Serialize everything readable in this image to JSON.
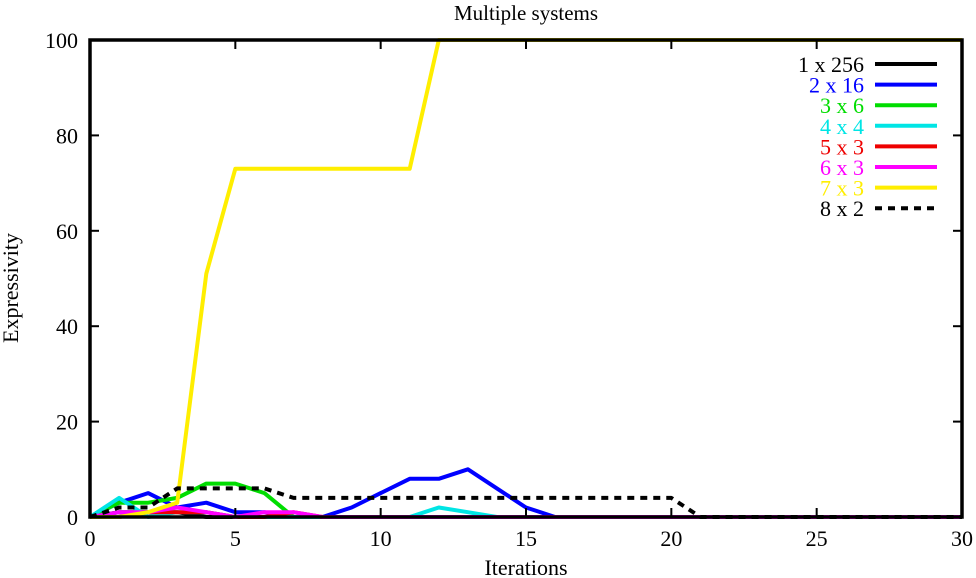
{
  "chart_data": {
    "type": "line",
    "title": "Multiple systems",
    "xlabel": "Iterations",
    "ylabel": "Expressivity",
    "xlim": [
      0,
      30
    ],
    "ylim": [
      0,
      100
    ],
    "xticks": [
      0,
      5,
      10,
      15,
      20,
      25,
      30
    ],
    "yticks": [
      0,
      20,
      40,
      60,
      80,
      100
    ],
    "legend_position": "top-right",
    "grid": false,
    "series": [
      {
        "name": "1 x 256",
        "color": "#000000",
        "dash": "solid",
        "points": [
          [
            0,
            0
          ],
          [
            1,
            1
          ],
          [
            2,
            1
          ],
          [
            3,
            1
          ],
          [
            4,
            0
          ],
          [
            5,
            0
          ],
          [
            6,
            0
          ],
          [
            7,
            0
          ],
          [
            8,
            0
          ],
          [
            9,
            0
          ],
          [
            10,
            0
          ],
          [
            11,
            0
          ],
          [
            12,
            0
          ],
          [
            13,
            0
          ],
          [
            14,
            0
          ],
          [
            15,
            0
          ],
          [
            16,
            0
          ],
          [
            17,
            0
          ],
          [
            18,
            0
          ],
          [
            19,
            0
          ],
          [
            20,
            0
          ],
          [
            21,
            0
          ],
          [
            22,
            0
          ],
          [
            23,
            0
          ],
          [
            24,
            0
          ],
          [
            25,
            0
          ],
          [
            26,
            0
          ],
          [
            27,
            0
          ],
          [
            28,
            0
          ],
          [
            29,
            0
          ],
          [
            30,
            0
          ]
        ]
      },
      {
        "name": "2 x 16",
        "color": "#0000ff",
        "dash": "solid",
        "points": [
          [
            0,
            0
          ],
          [
            1,
            3
          ],
          [
            2,
            5
          ],
          [
            3,
            2
          ],
          [
            4,
            3
          ],
          [
            5,
            1
          ],
          [
            6,
            1
          ],
          [
            7,
            0
          ],
          [
            8,
            0
          ],
          [
            9,
            2
          ],
          [
            10,
            5
          ],
          [
            11,
            8
          ],
          [
            12,
            8
          ],
          [
            13,
            10
          ],
          [
            14,
            6
          ],
          [
            15,
            2
          ],
          [
            16,
            0
          ],
          [
            17,
            0
          ],
          [
            18,
            0
          ],
          [
            19,
            0
          ],
          [
            20,
            0
          ],
          [
            21,
            0
          ],
          [
            22,
            0
          ],
          [
            23,
            0
          ],
          [
            24,
            0
          ],
          [
            25,
            0
          ],
          [
            26,
            0
          ],
          [
            27,
            0
          ],
          [
            28,
            0
          ],
          [
            29,
            0
          ],
          [
            30,
            0
          ]
        ]
      },
      {
        "name": "3 x 6",
        "color": "#00dd00",
        "dash": "solid",
        "points": [
          [
            0,
            0
          ],
          [
            1,
            3
          ],
          [
            2,
            3
          ],
          [
            3,
            4
          ],
          [
            4,
            7
          ],
          [
            5,
            7
          ],
          [
            6,
            5
          ],
          [
            7,
            0
          ],
          [
            8,
            0
          ],
          [
            9,
            0
          ],
          [
            10,
            0
          ],
          [
            11,
            0
          ],
          [
            12,
            0
          ],
          [
            13,
            0
          ],
          [
            14,
            0
          ],
          [
            15,
            0
          ],
          [
            16,
            0
          ],
          [
            17,
            0
          ],
          [
            18,
            0
          ],
          [
            19,
            0
          ],
          [
            20,
            0
          ],
          [
            21,
            0
          ],
          [
            22,
            0
          ],
          [
            23,
            0
          ],
          [
            24,
            0
          ],
          [
            25,
            0
          ],
          [
            26,
            0
          ],
          [
            27,
            0
          ],
          [
            28,
            0
          ],
          [
            29,
            0
          ],
          [
            30,
            0
          ]
        ]
      },
      {
        "name": "4 x 4",
        "color": "#00e5e5",
        "dash": "solid",
        "points": [
          [
            0,
            0
          ],
          [
            1,
            4
          ],
          [
            2,
            0
          ],
          [
            3,
            1
          ],
          [
            4,
            1
          ],
          [
            5,
            0
          ],
          [
            6,
            0
          ],
          [
            7,
            0
          ],
          [
            8,
            0
          ],
          [
            9,
            0
          ],
          [
            10,
            0
          ],
          [
            11,
            0
          ],
          [
            12,
            2
          ],
          [
            13,
            1
          ],
          [
            14,
            0
          ],
          [
            15,
            0
          ],
          [
            16,
            0
          ],
          [
            17,
            0
          ],
          [
            18,
            0
          ],
          [
            19,
            0
          ],
          [
            20,
            0
          ],
          [
            21,
            0
          ],
          [
            22,
            0
          ],
          [
            23,
            0
          ],
          [
            24,
            0
          ],
          [
            25,
            0
          ],
          [
            26,
            0
          ],
          [
            27,
            0
          ],
          [
            28,
            0
          ],
          [
            29,
            0
          ],
          [
            30,
            0
          ]
        ]
      },
      {
        "name": "5 x 3",
        "color": "#ee0000",
        "dash": "solid",
        "points": [
          [
            0,
            0
          ],
          [
            1,
            0
          ],
          [
            2,
            1
          ],
          [
            3,
            1
          ],
          [
            4,
            1
          ],
          [
            5,
            0
          ],
          [
            6,
            0
          ],
          [
            7,
            1
          ],
          [
            8,
            0
          ],
          [
            9,
            0
          ],
          [
            10,
            0
          ],
          [
            11,
            0
          ],
          [
            12,
            0
          ],
          [
            13,
            0
          ],
          [
            14,
            0
          ],
          [
            15,
            0
          ],
          [
            16,
            0
          ],
          [
            17,
            0
          ],
          [
            18,
            0
          ],
          [
            19,
            0
          ],
          [
            20,
            0
          ],
          [
            21,
            0
          ],
          [
            22,
            0
          ],
          [
            23,
            0
          ],
          [
            24,
            0
          ],
          [
            25,
            0
          ],
          [
            26,
            0
          ],
          [
            27,
            0
          ],
          [
            28,
            0
          ],
          [
            29,
            0
          ],
          [
            30,
            0
          ]
        ]
      },
      {
        "name": "6 x 3",
        "color": "#ff00ff",
        "dash": "solid",
        "points": [
          [
            0,
            0
          ],
          [
            1,
            1
          ],
          [
            2,
            1
          ],
          [
            3,
            2
          ],
          [
            4,
            1
          ],
          [
            5,
            0
          ],
          [
            6,
            1
          ],
          [
            7,
            1
          ],
          [
            8,
            0
          ],
          [
            9,
            0
          ],
          [
            10,
            0
          ],
          [
            11,
            0
          ],
          [
            12,
            0
          ],
          [
            13,
            0
          ],
          [
            14,
            0
          ],
          [
            15,
            0
          ],
          [
            16,
            0
          ],
          [
            17,
            0
          ],
          [
            18,
            0
          ],
          [
            19,
            0
          ],
          [
            20,
            0
          ],
          [
            21,
            0
          ],
          [
            22,
            0
          ],
          [
            23,
            0
          ],
          [
            24,
            0
          ],
          [
            25,
            0
          ],
          [
            26,
            0
          ],
          [
            27,
            0
          ],
          [
            28,
            0
          ],
          [
            29,
            0
          ],
          [
            30,
            0
          ]
        ]
      },
      {
        "name": "7 x 3",
        "color": "#ffee00",
        "dash": "solid",
        "points": [
          [
            0,
            0
          ],
          [
            1,
            0
          ],
          [
            2,
            1
          ],
          [
            3,
            3
          ],
          [
            4,
            51
          ],
          [
            5,
            73
          ],
          [
            6,
            73
          ],
          [
            7,
            73
          ],
          [
            8,
            73
          ],
          [
            9,
            73
          ],
          [
            10,
            73
          ],
          [
            11,
            73
          ],
          [
            12,
            100
          ],
          [
            13,
            100
          ],
          [
            14,
            100
          ],
          [
            15,
            100
          ],
          [
            16,
            100
          ],
          [
            17,
            100
          ],
          [
            18,
            100
          ],
          [
            19,
            100
          ],
          [
            20,
            100
          ],
          [
            21,
            100
          ],
          [
            22,
            100
          ],
          [
            23,
            100
          ],
          [
            24,
            100
          ],
          [
            25,
            100
          ],
          [
            26,
            100
          ],
          [
            27,
            100
          ],
          [
            28,
            100
          ],
          [
            29,
            100
          ],
          [
            30,
            100
          ]
        ]
      },
      {
        "name": "8 x 2",
        "color": "#000000",
        "dash": "dotted",
        "points": [
          [
            0,
            0
          ],
          [
            1,
            2
          ],
          [
            2,
            2
          ],
          [
            3,
            6
          ],
          [
            4,
            6
          ],
          [
            5,
            6
          ],
          [
            6,
            6
          ],
          [
            7,
            4
          ],
          [
            8,
            4
          ],
          [
            9,
            4
          ],
          [
            10,
            4
          ],
          [
            11,
            4
          ],
          [
            12,
            4
          ],
          [
            13,
            4
          ],
          [
            14,
            4
          ],
          [
            15,
            4
          ],
          [
            16,
            4
          ],
          [
            17,
            4
          ],
          [
            18,
            4
          ],
          [
            19,
            4
          ],
          [
            20,
            4
          ],
          [
            21,
            0
          ],
          [
            22,
            0
          ],
          [
            23,
            0
          ],
          [
            24,
            0
          ],
          [
            25,
            0
          ],
          [
            26,
            0
          ],
          [
            27,
            0
          ],
          [
            28,
            0
          ],
          [
            29,
            0
          ],
          [
            30,
            0
          ]
        ]
      }
    ]
  }
}
